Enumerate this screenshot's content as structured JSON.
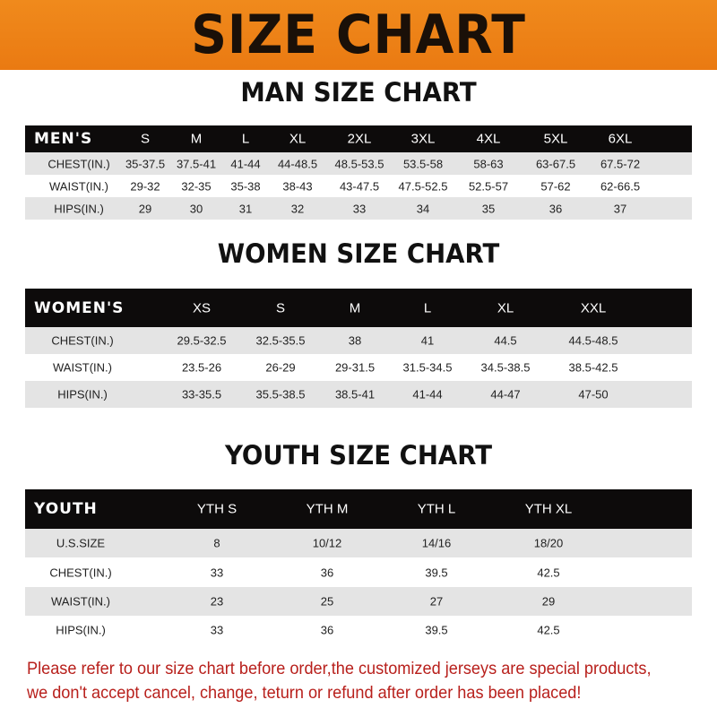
{
  "title": "SIZE CHART",
  "tables": [
    {
      "title": "MAN SIZE CHART",
      "header_label": "MEN'S",
      "sizes": [
        "S",
        "M",
        "L",
        "XL",
        "2XL",
        "3XL",
        "4XL",
        "5XL",
        "6XL"
      ],
      "rows": [
        {
          "label": "CHEST(IN.)",
          "values": [
            "35-37.5",
            "37.5-41",
            "41-44",
            "44-48.5",
            "48.5-53.5",
            "53.5-58",
            "58-63",
            "63-67.5",
            "67.5-72"
          ]
        },
        {
          "label": "WAIST(IN.)",
          "values": [
            "29-32",
            "32-35",
            "35-38",
            "38-43",
            "43-47.5",
            "47.5-52.5",
            "52.5-57",
            "57-62",
            "62-66.5"
          ]
        },
        {
          "label": "HIPS(IN.)",
          "values": [
            "29",
            "30",
            "31",
            "32",
            "33",
            "34",
            "35",
            "36",
            "37"
          ]
        }
      ]
    },
    {
      "title": "WOMEN SIZE CHART",
      "header_label": "WOMEN'S",
      "sizes": [
        "XS",
        "S",
        "M",
        "L",
        "XL",
        "XXL"
      ],
      "rows": [
        {
          "label": "CHEST(IN.)",
          "values": [
            "29.5-32.5",
            "32.5-35.5",
            "38",
            "41",
            "44.5",
            "44.5-48.5"
          ]
        },
        {
          "label": "WAIST(IN.)",
          "values": [
            "23.5-26",
            "26-29",
            "29-31.5",
            "31.5-34.5",
            "34.5-38.5",
            "38.5-42.5"
          ]
        },
        {
          "label": "HIPS(IN.)",
          "values": [
            "33-35.5",
            "35.5-38.5",
            "38.5-41",
            "41-44",
            "44-47",
            "47-50"
          ]
        }
      ]
    },
    {
      "title": "YOUTH SIZE CHART",
      "header_label": "YOUTH",
      "sizes": [
        "YTH S",
        "YTH M",
        "YTH L",
        "YTH XL"
      ],
      "rows": [
        {
          "label": "U.S.SIZE",
          "values": [
            "8",
            "10/12",
            "14/16",
            "18/20"
          ]
        },
        {
          "label": "CHEST(IN.)",
          "values": [
            "33",
            "36",
            "39.5",
            "42.5"
          ]
        },
        {
          "label": "WAIST(IN.)",
          "values": [
            "23",
            "25",
            "27",
            "29"
          ]
        },
        {
          "label": "HIPS(IN.)",
          "values": [
            "33",
            "36",
            "39.5",
            "42.5"
          ]
        }
      ]
    }
  ],
  "note": "Please refer to our size chart before order,the customized jerseys are special products, we don't accept cancel, change, teturn or refund after order has been placed!",
  "colors": {
    "banner": "#ef8418",
    "header_row": "#0d0b0b",
    "note": "#b8201c"
  }
}
